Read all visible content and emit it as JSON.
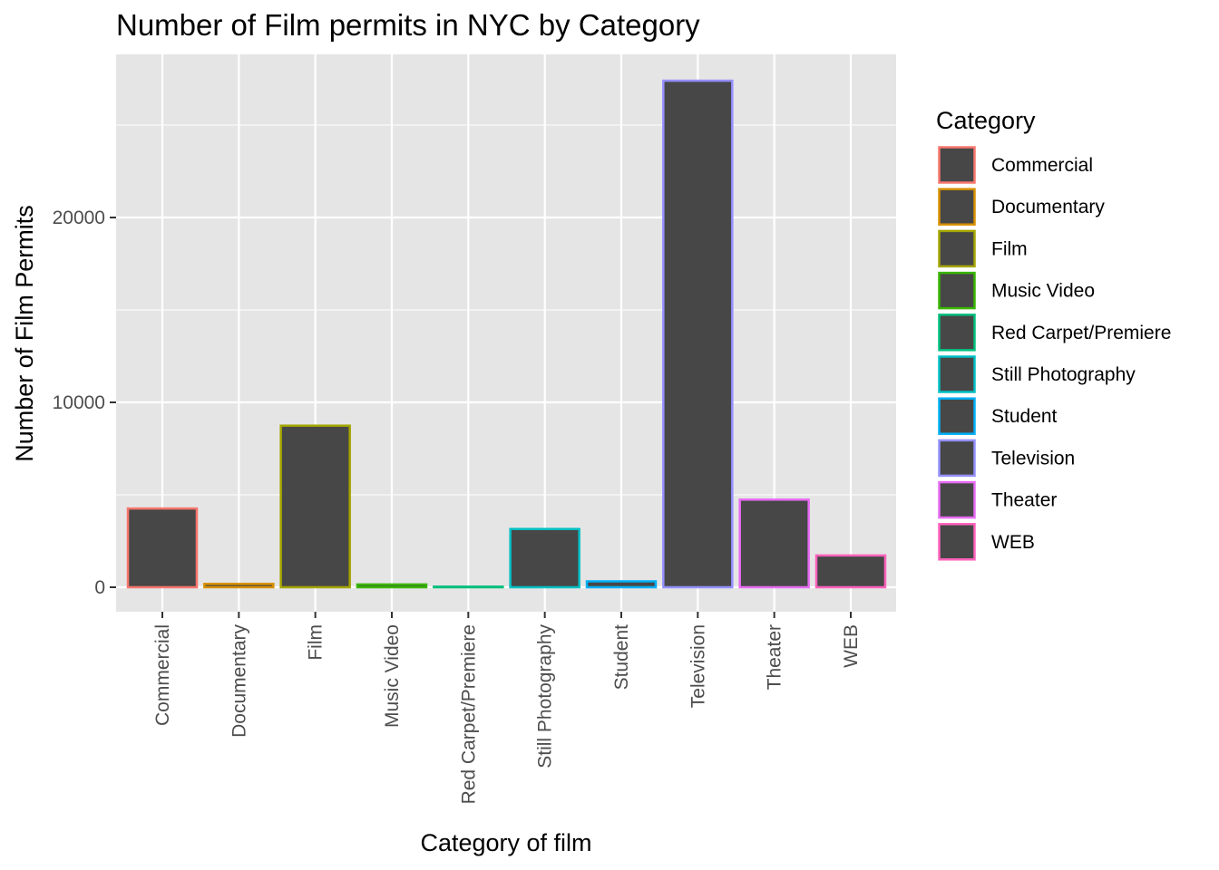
{
  "chart_data": {
    "type": "bar",
    "title": "Number of Film permits in NYC by Category",
    "xlabel": "Category of film",
    "ylabel": "Number of Film Permits",
    "categories": [
      "Commercial",
      "Documentary",
      "Film",
      "Music Video",
      "Red Carpet/Premiere",
      "Still Photography",
      "Student",
      "Television",
      "Theater",
      "WEB"
    ],
    "values": [
      4260,
      180,
      8740,
      150,
      30,
      3150,
      320,
      27400,
      4740,
      1720
    ],
    "yticks": [
      0,
      10000,
      20000
    ],
    "ytick_labels": [
      "0",
      "10000",
      "20000"
    ],
    "ylim": [
      -1350,
      28800
    ],
    "grid": true,
    "bar_fill": "#474747",
    "panel_background": "#e5e5e5",
    "grid_color": "#ffffff",
    "legend": {
      "title": "Category",
      "placement": "right",
      "entries": [
        {
          "label": "Commercial",
          "color": "#f8766d"
        },
        {
          "label": "Documentary",
          "color": "#d89000"
        },
        {
          "label": "Film",
          "color": "#a3a500"
        },
        {
          "label": "Music Video",
          "color": "#39b600"
        },
        {
          "label": "Red Carpet/Premiere",
          "color": "#00bf7d"
        },
        {
          "label": "Still Photography",
          "color": "#00bfc4"
        },
        {
          "label": "Student",
          "color": "#00b0f6"
        },
        {
          "label": "Television",
          "color": "#9590ff"
        },
        {
          "label": "Theater",
          "color": "#e76bf3"
        },
        {
          "label": "WEB",
          "color": "#ff62bc"
        }
      ]
    }
  }
}
